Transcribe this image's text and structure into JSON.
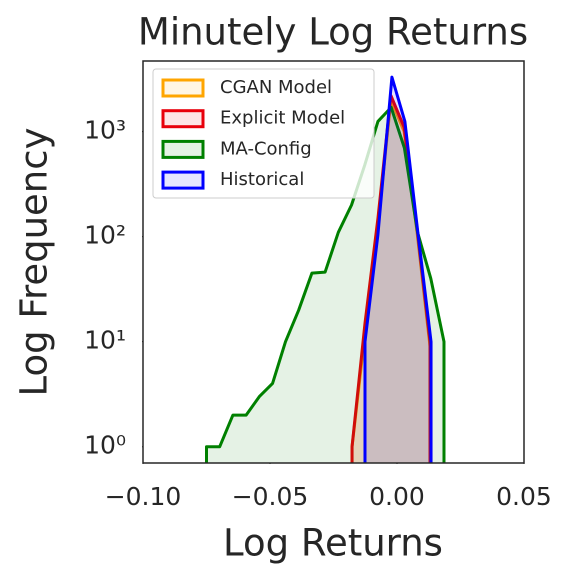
{
  "chart_data": {
    "type": "histogram-poly",
    "title": "Minutely Log Returns",
    "xlabel": "Log Returns",
    "ylabel": "Log Frequency",
    "log_y": true,
    "grid": false,
    "legend": "upper left",
    "xlim": [
      -0.1,
      0.05
    ],
    "xticks": [
      {
        "value": -0.1,
        "label": "−0.10"
      },
      {
        "value": -0.05,
        "label": "−0.05"
      },
      {
        "value": 0,
        "label": "0.00"
      },
      {
        "value": 0.05,
        "label": "0.05"
      }
    ],
    "ylim": [
      0.7,
      4700
    ],
    "yticks": [
      {
        "value": 1,
        "label": "10⁰"
      },
      {
        "value": 10,
        "label": "10¹"
      },
      {
        "value": 100,
        "label": "10²"
      },
      {
        "value": 1000,
        "label": "10³"
      }
    ],
    "series": [
      {
        "name": "CGAN Model",
        "color": "#ffa500",
        "x": [
          -0.0177,
          -0.0126,
          -0.0075,
          -0.0024,
          0.0028,
          0.0079,
          0.013
        ],
        "values": [
          1,
          12,
          130,
          2000,
          1000,
          110,
          9
        ]
      },
      {
        "name": "Explicit Model",
        "color": "#e8000b",
        "x": [
          -0.0177,
          -0.0126,
          -0.0075,
          -0.0024,
          0.0028,
          0.0079,
          0.013
        ],
        "values": [
          1,
          15,
          150,
          2200,
          1100,
          120,
          10
        ]
      },
      {
        "name": "MA-Config",
        "color": "#008000",
        "x": [
          -0.075,
          -0.0698,
          -0.0646,
          -0.0594,
          -0.0542,
          -0.049,
          -0.0439,
          -0.0387,
          -0.0335,
          -0.0283,
          -0.0231,
          -0.0179,
          -0.0127,
          -0.0075,
          -0.0023,
          0.0029,
          0.0081,
          0.0133,
          0.0185
        ],
        "values": [
          1,
          1,
          2,
          2,
          3,
          4,
          10,
          20,
          45,
          46,
          110,
          200,
          480,
          1250,
          1700,
          700,
          110,
          40,
          10
        ]
      },
      {
        "name": "Historical",
        "color": "#0000ff",
        "x": [
          -0.0126,
          -0.0075,
          -0.002,
          0.0031,
          0.0083,
          0.0134
        ],
        "values": [
          10,
          105,
          3300,
          1250,
          105,
          10
        ]
      }
    ]
  }
}
